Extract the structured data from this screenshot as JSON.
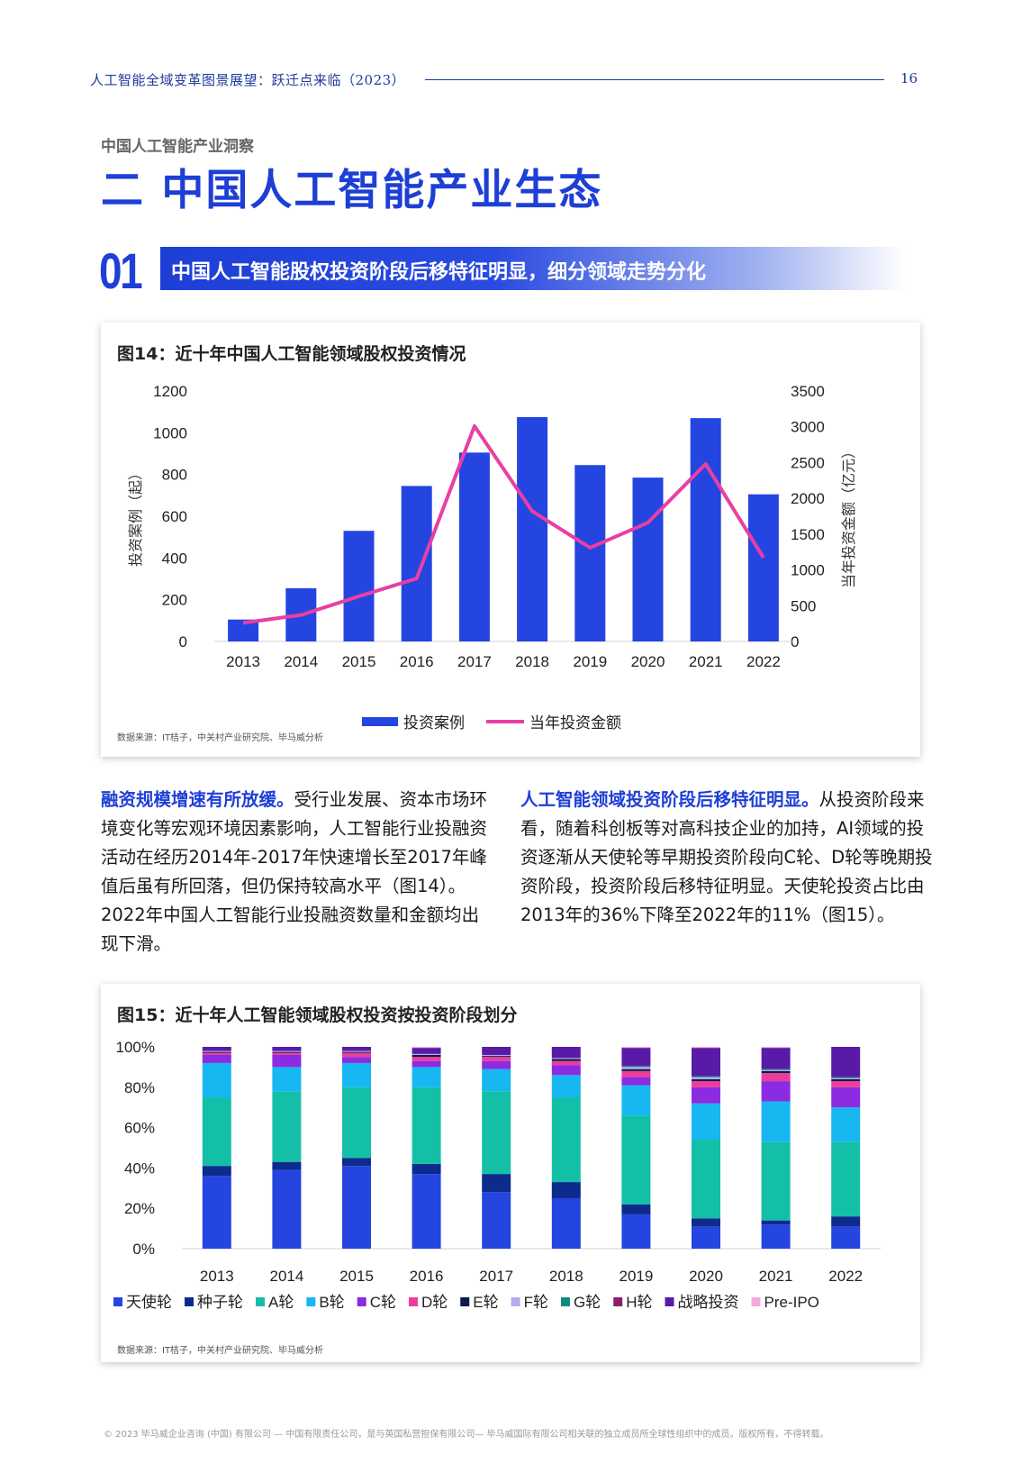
{
  "header": {
    "title": "人工智能全域变革图景展望：跃迁点来临（2023）",
    "page": "16"
  },
  "section": {
    "kicker": "中国人工智能产业洞察",
    "title": "二  中国人工智能产业生态"
  },
  "subsection": {
    "number": "01",
    "title": "中国人工智能股权投资阶段后移特征明显，细分领域走势分化"
  },
  "figure14": {
    "title": "图14：近十年中国人工智能领域股权投资情况",
    "source": "数据来源：IT桔子，中关村产业研究院、毕马威分析"
  },
  "figure15": {
    "title": "图15：近十年人工智能领域股权投资按投资阶段划分",
    "source": "数据来源：IT桔子，中关村产业研究院、毕马威分析"
  },
  "paragraphs": {
    "left_lead": "融资规模增速有所放缓。",
    "left_body": "受行业发展、资本市场环境变化等宏观环境因素影响，人工智能行业投融资活动在经历2014年-2017年快速增长至2017年峰值后虽有所回落，但仍保持较高水平（图14）。2022年中国人工智能行业投融资数量和金额均出现下滑。",
    "right_lead": "人工智能领域投资阶段后移特征明显。",
    "right_body": "从投资阶段来看，随着科创板等对高科技企业的加持，AI领域的投资逐渐从天使轮等早期投资阶段向C轮、D轮等晚期投资阶段，投资阶段后移特征明显。天使轮投资占比由2013年的36%下降至2022年的11%（图15）。"
  },
  "footer": "© 2023 毕马威企业咨询 (中国) 有限公司 — 中国有限责任公司，是与英国私营担保有限公司— 毕马威国际有限公司相关联的独立成员所全球性组织中的成员。版权所有，不得转载。",
  "chart_data": [
    {
      "type": "bar",
      "categories": [
        "2013",
        "2014",
        "2015",
        "2016",
        "2017",
        "2018",
        "2019",
        "2020",
        "2021",
        "2022"
      ],
      "series": [
        {
          "name": "投资案例",
          "type": "bar",
          "axis": "left",
          "color": "#2445e0",
          "values": [
            105,
            255,
            530,
            745,
            905,
            1075,
            845,
            785,
            1070,
            705
          ]
        },
        {
          "name": "当年投资金额",
          "type": "line",
          "axis": "right",
          "color": "#e83fa4",
          "values": [
            260,
            370,
            630,
            880,
            3010,
            1820,
            1310,
            1660,
            2480,
            1170
          ]
        }
      ],
      "ylabel": "投资案例（起）",
      "y2label": "当年投资金额（亿元）",
      "ylim": [
        0,
        1200
      ],
      "y2lim": [
        0,
        3500
      ],
      "yticks": [
        "0",
        "200",
        "400",
        "600",
        "800",
        "1000",
        "1200"
      ],
      "y2ticks": [
        "0",
        "500",
        "1000",
        "1500",
        "2000",
        "2500",
        "3000",
        "3500"
      ],
      "legend": "bottom"
    },
    {
      "type": "bar",
      "stacked": true,
      "categories": [
        "2013",
        "2014",
        "2015",
        "2016",
        "2017",
        "2018",
        "2019",
        "2020",
        "2021",
        "2022"
      ],
      "yticks": [
        "0%",
        "20%",
        "40%",
        "60%",
        "80%",
        "100%"
      ],
      "ylim": [
        0,
        100
      ],
      "legend": "bottom",
      "series": [
        {
          "name": "天使轮",
          "color": "#2445e0",
          "values": [
            36,
            39,
            41,
            37,
            28,
            25,
            17,
            11,
            12,
            11
          ]
        },
        {
          "name": "种子轮",
          "color": "#0d2b8c",
          "values": [
            5,
            4,
            4,
            5,
            9,
            8,
            5,
            4,
            2,
            5
          ]
        },
        {
          "name": "A轮",
          "color": "#14bfa8",
          "values": [
            34,
            35,
            35,
            38,
            41,
            42,
            44,
            39,
            39,
            37
          ]
        },
        {
          "name": "B轮",
          "color": "#17b7f2",
          "values": [
            17,
            12,
            12,
            10,
            11,
            11,
            15,
            18,
            20,
            17
          ]
        },
        {
          "name": "C轮",
          "color": "#8b2be2",
          "values": [
            4,
            6,
            3,
            3,
            4,
            5,
            4,
            8,
            10,
            10
          ]
        },
        {
          "name": "D轮",
          "color": "#ee3c9a",
          "values": [
            1,
            1,
            2,
            2,
            2,
            2,
            3,
            3,
            4,
            3
          ]
        },
        {
          "name": "E轮",
          "color": "#0a1a4a",
          "values": [
            0.5,
            0.5,
            0.5,
            1,
            0.5,
            1,
            1,
            1,
            1,
            1
          ]
        },
        {
          "name": "F轮",
          "color": "#b8a8ee",
          "values": [
            0.5,
            0.5,
            0.5,
            0.5,
            0.5,
            0.5,
            1,
            1,
            0.5,
            0.5
          ]
        },
        {
          "name": "G轮",
          "color": "#0e8c7e",
          "values": [
            0,
            0,
            0,
            0,
            0,
            0,
            0.5,
            0.5,
            0.5,
            0.5
          ]
        },
        {
          "name": "H轮",
          "color": "#8a1f6e",
          "values": [
            0,
            0,
            0,
            0,
            0,
            0,
            0,
            0,
            0,
            0
          ]
        },
        {
          "name": "战略投资",
          "color": "#5a1aa8",
          "values": [
            2,
            2,
            2,
            3,
            4,
            5.5,
            9,
            14,
            10.5,
            15
          ]
        },
        {
          "name": "Pre-IPO",
          "color": "#f6a9d8",
          "values": [
            0,
            0,
            0,
            0.5,
            0,
            0,
            0.5,
            0.5,
            0.5,
            0
          ]
        }
      ]
    }
  ]
}
